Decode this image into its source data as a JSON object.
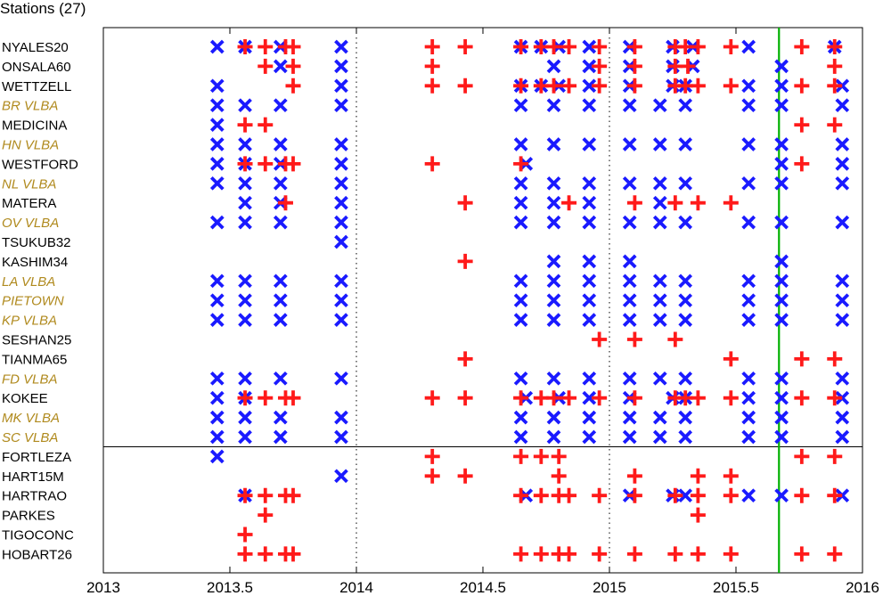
{
  "chart_data": {
    "type": "scatter",
    "title": "Stations (27)",
    "xlabel": "",
    "ylabel": "",
    "xlim": [
      2013,
      2016
    ],
    "x_ticks": [
      "2013",
      "2013.5",
      "2014",
      "2014.5",
      "2015",
      "2015.5",
      "2016"
    ],
    "x_tick_values": [
      2013,
      2013.5,
      2014,
      2014.5,
      2015,
      2015.5,
      2016
    ],
    "dotted_vlines": [
      2014,
      2015
    ],
    "marker_current": 2015.67,
    "separator_after_index": 20,
    "grid": false,
    "legend": "none",
    "colors": {
      "cross": "#ff1a1a",
      "x": "#1a1aff",
      "current": "#00b000",
      "vlba_label": "#b08a1e",
      "label": "#000000"
    },
    "stations": [
      {
        "name": "NYALES20",
        "vlba": false,
        "x": [
          2013.45,
          2013.56,
          2013.7,
          2013.94,
          2014.65,
          2014.73,
          2014.8,
          2014.92,
          2015.08,
          2015.25,
          2015.33,
          2015.55,
          2015.89
        ],
        "plus": [
          2013.56,
          2013.64,
          2013.72,
          2013.75,
          2014.3,
          2014.43,
          2014.65,
          2014.73,
          2014.78,
          2014.84,
          2014.96,
          2015.1,
          2015.26,
          2015.3,
          2015.35,
          2015.48,
          2015.76,
          2015.89
        ]
      },
      {
        "name": "ONSALA60",
        "vlba": false,
        "x": [
          2013.7,
          2013.94,
          2014.78,
          2014.92,
          2015.08,
          2015.25,
          2015.33,
          2015.68
        ],
        "plus": [
          2013.64,
          2013.75,
          2014.3,
          2014.96,
          2015.1,
          2015.26,
          2015.31,
          2015.89
        ]
      },
      {
        "name": "WETTZELL",
        "vlba": false,
        "x": [
          2013.45,
          2013.94,
          2014.65,
          2014.73,
          2014.8,
          2014.92,
          2015.08,
          2015.25,
          2015.3,
          2015.55,
          2015.68,
          2015.92
        ],
        "plus": [
          2013.75,
          2014.3,
          2014.43,
          2014.65,
          2014.73,
          2014.78,
          2014.84,
          2014.96,
          2015.1,
          2015.26,
          2015.3,
          2015.35,
          2015.48,
          2015.76,
          2015.89
        ]
      },
      {
        "name": "BR VLBA",
        "vlba": true,
        "x": [
          2013.45,
          2013.56,
          2013.7,
          2013.94,
          2014.65,
          2014.78,
          2014.92,
          2015.08,
          2015.2,
          2015.3,
          2015.55,
          2015.68,
          2015.92
        ],
        "plus": []
      },
      {
        "name": "MEDICINA",
        "vlba": false,
        "x": [
          2013.45
        ],
        "plus": [
          2013.56,
          2013.64,
          2015.76,
          2015.89
        ]
      },
      {
        "name": "HN VLBA",
        "vlba": true,
        "x": [
          2013.45,
          2013.56,
          2013.7,
          2013.94,
          2014.65,
          2014.78,
          2014.92,
          2015.08,
          2015.2,
          2015.3,
          2015.55,
          2015.68,
          2015.92
        ],
        "plus": []
      },
      {
        "name": "WESTFORD",
        "vlba": false,
        "x": [
          2013.45,
          2013.56,
          2013.7,
          2013.94,
          2014.67,
          2015.68,
          2015.92
        ],
        "plus": [
          2013.56,
          2013.64,
          2013.72,
          2013.75,
          2014.3,
          2014.65,
          2015.76
        ]
      },
      {
        "name": "NL VLBA",
        "vlba": true,
        "x": [
          2013.45,
          2013.56,
          2013.7,
          2013.94,
          2014.65,
          2014.78,
          2014.92,
          2015.08,
          2015.2,
          2015.3,
          2015.55,
          2015.68,
          2015.92
        ],
        "plus": []
      },
      {
        "name": "MATERA",
        "vlba": false,
        "x": [
          2013.56,
          2013.7,
          2013.94,
          2014.65,
          2014.78,
          2014.92,
          2015.2
        ],
        "plus": [
          2013.72,
          2014.43,
          2014.84,
          2015.1,
          2015.26,
          2015.35,
          2015.48
        ]
      },
      {
        "name": "OV VLBA",
        "vlba": true,
        "x": [
          2013.45,
          2013.56,
          2013.7,
          2013.94,
          2014.65,
          2014.78,
          2014.92,
          2015.08,
          2015.2,
          2015.3,
          2015.55,
          2015.68,
          2015.92
        ],
        "plus": []
      },
      {
        "name": "TSUKUB32",
        "vlba": false,
        "x": [
          2013.94
        ],
        "plus": []
      },
      {
        "name": "KASHIM34",
        "vlba": false,
        "x": [
          2014.78,
          2014.92,
          2015.08,
          2015.68
        ],
        "plus": [
          2014.43
        ]
      },
      {
        "name": "LA VLBA",
        "vlba": true,
        "x": [
          2013.45,
          2013.56,
          2013.7,
          2013.94,
          2014.65,
          2014.78,
          2014.92,
          2015.08,
          2015.2,
          2015.3,
          2015.55,
          2015.68,
          2015.92
        ],
        "plus": []
      },
      {
        "name": "PIETOWN",
        "vlba": true,
        "x": [
          2013.45,
          2013.56,
          2013.7,
          2013.94,
          2014.65,
          2014.78,
          2014.92,
          2015.08,
          2015.2,
          2015.3,
          2015.55,
          2015.68,
          2015.92
        ],
        "plus": []
      },
      {
        "name": "KP VLBA",
        "vlba": true,
        "x": [
          2013.45,
          2013.56,
          2013.7,
          2013.94,
          2014.65,
          2014.78,
          2014.92,
          2015.08,
          2015.2,
          2015.3,
          2015.55,
          2015.68,
          2015.92
        ],
        "plus": []
      },
      {
        "name": "SESHAN25",
        "vlba": false,
        "x": [],
        "plus": [
          2014.96,
          2015.1,
          2015.26
        ]
      },
      {
        "name": "TIANMA65",
        "vlba": false,
        "x": [],
        "plus": [
          2014.43,
          2015.48,
          2015.76,
          2015.89
        ]
      },
      {
        "name": "FD VLBA",
        "vlba": true,
        "x": [
          2013.45,
          2013.56,
          2013.7,
          2013.94,
          2014.65,
          2014.78,
          2014.92,
          2015.08,
          2015.2,
          2015.3,
          2015.55,
          2015.68,
          2015.92
        ],
        "plus": []
      },
      {
        "name": "KOKEE",
        "vlba": false,
        "x": [
          2013.45,
          2013.56,
          2014.67,
          2014.8,
          2014.92,
          2015.08,
          2015.25,
          2015.3,
          2015.55,
          2015.68,
          2015.92
        ],
        "plus": [
          2013.56,
          2013.64,
          2013.72,
          2013.75,
          2014.3,
          2014.43,
          2014.65,
          2014.73,
          2014.78,
          2014.84,
          2014.96,
          2015.1,
          2015.26,
          2015.3,
          2015.35,
          2015.48,
          2015.76,
          2015.89
        ]
      },
      {
        "name": "MK VLBA",
        "vlba": true,
        "x": [
          2013.45,
          2013.56,
          2013.7,
          2013.94,
          2014.65,
          2014.78,
          2014.92,
          2015.08,
          2015.2,
          2015.3,
          2015.55,
          2015.68,
          2015.92
        ],
        "plus": []
      },
      {
        "name": "SC VLBA",
        "vlba": true,
        "x": [
          2013.45,
          2013.56,
          2013.7,
          2013.94,
          2014.65,
          2014.78,
          2014.92,
          2015.08,
          2015.2,
          2015.3,
          2015.55,
          2015.68,
          2015.92
        ],
        "plus": []
      },
      {
        "name": "FORTLEZA",
        "vlba": false,
        "x": [
          2013.45
        ],
        "plus": [
          2014.3,
          2014.65,
          2014.73,
          2014.8,
          2015.76,
          2015.89
        ]
      },
      {
        "name": "HART15M",
        "vlba": false,
        "x": [
          2013.94
        ],
        "plus": [
          2014.3,
          2014.43,
          2014.8,
          2015.1,
          2015.35,
          2015.48
        ]
      },
      {
        "name": "HARTRAO",
        "vlba": false,
        "x": [
          2013.56,
          2014.67,
          2015.08,
          2015.25,
          2015.3,
          2015.55,
          2015.68,
          2015.92
        ],
        "plus": [
          2013.56,
          2013.64,
          2013.72,
          2013.75,
          2014.65,
          2014.73,
          2014.8,
          2014.84,
          2014.96,
          2015.1,
          2015.26,
          2015.35,
          2015.48,
          2015.76,
          2015.89
        ]
      },
      {
        "name": "PARKES",
        "vlba": false,
        "x": [],
        "plus": [
          2013.64,
          2015.35
        ]
      },
      {
        "name": "TIGOCONC",
        "vlba": false,
        "x": [],
        "plus": [
          2013.56
        ]
      },
      {
        "name": "HOBART26",
        "vlba": false,
        "x": [],
        "plus": [
          2013.56,
          2013.64,
          2013.72,
          2013.75,
          2014.65,
          2014.73,
          2014.8,
          2014.84,
          2014.96,
          2015.1,
          2015.26,
          2015.35,
          2015.48,
          2015.76,
          2015.89
        ]
      }
    ]
  }
}
